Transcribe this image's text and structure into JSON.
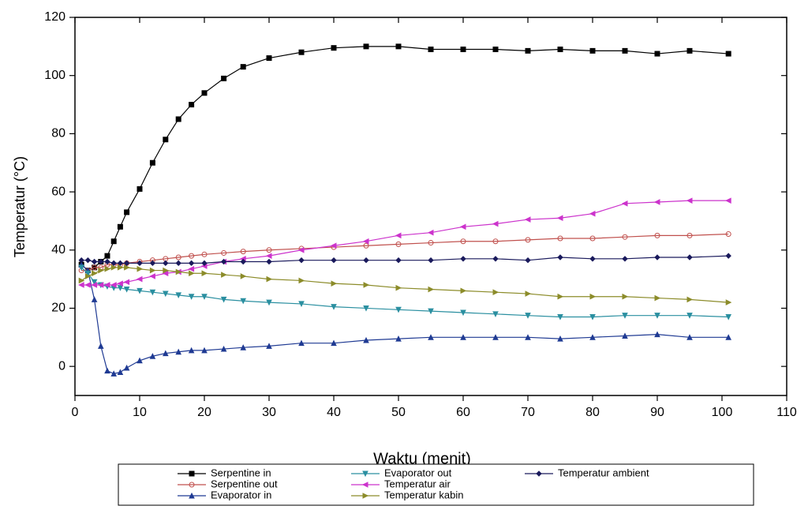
{
  "chart_data": {
    "type": "line",
    "xlabel": "Waktu (menit)",
    "ylabel": "Temperatur (°C)",
    "xlim": [
      0,
      110
    ],
    "ylim": [
      -10,
      120
    ],
    "xticks": [
      0,
      10,
      20,
      30,
      40,
      50,
      60,
      70,
      80,
      90,
      100,
      110
    ],
    "yticks": [
      0,
      20,
      40,
      60,
      80,
      100,
      120
    ],
    "x": [
      1,
      2,
      3,
      4,
      5,
      6,
      7,
      8,
      10,
      12,
      14,
      16,
      18,
      20,
      23,
      26,
      30,
      35,
      40,
      45,
      50,
      55,
      60,
      65,
      70,
      75,
      80,
      85,
      90,
      95,
      101
    ],
    "series": [
      {
        "name": "Serpentine in",
        "color": "#000000",
        "marker": "square",
        "values": [
          35,
          33,
          34,
          36,
          38,
          43,
          48,
          53,
          61,
          70,
          78,
          85,
          90,
          94,
          99,
          103,
          106,
          108,
          109.5,
          110,
          110,
          109,
          109,
          109,
          108.5,
          109,
          108.5,
          108.5,
          107.5,
          108.5,
          107.5
        ]
      },
      {
        "name": "Serpentine out",
        "color": "#c0504d",
        "marker": "circle",
        "values": [
          33,
          33,
          34,
          34,
          35,
          35,
          35,
          35.5,
          36,
          36.5,
          37,
          37.5,
          38,
          38.5,
          39,
          39.5,
          40,
          40.5,
          41,
          41.5,
          42,
          42.5,
          43,
          43,
          43.5,
          44,
          44,
          44.5,
          45,
          45,
          45.5
        ]
      },
      {
        "name": "Evaporator in",
        "color": "#1f3a93",
        "marker": "triangle-up",
        "values": [
          35,
          33,
          23,
          7,
          -1.5,
          -2.5,
          -2,
          -0.5,
          2,
          3.5,
          4.5,
          5,
          5.5,
          5.5,
          6,
          6.5,
          7,
          8,
          8,
          9,
          9.5,
          10,
          10,
          10,
          10,
          9.5,
          10,
          10.5,
          11,
          10,
          10
        ]
      },
      {
        "name": "Evaporator out",
        "color": "#2a8fa0",
        "marker": "triangle-down",
        "values": [
          34,
          32,
          29,
          28,
          27.5,
          27,
          27,
          26.5,
          26,
          25.5,
          25,
          24.5,
          24,
          24,
          23,
          22.5,
          22,
          21.5,
          20.5,
          20,
          19.5,
          19,
          18.5,
          18,
          17.5,
          17,
          17,
          17.5,
          17.5,
          17.5,
          17
        ]
      },
      {
        "name": "Temperatur air",
        "color": "#cc33cc",
        "marker": "triangle-left",
        "values": [
          28,
          28,
          28,
          28,
          28,
          28,
          28.5,
          29,
          30,
          31,
          32,
          32.5,
          33.5,
          34.5,
          36,
          37,
          38,
          40,
          41.5,
          43,
          45,
          46,
          48,
          49,
          50.5,
          51,
          52.5,
          56,
          56.5,
          57,
          57
        ]
      },
      {
        "name": "Temperatur kabin",
        "color": "#8c8c2a",
        "marker": "triangle-right",
        "values": [
          29.5,
          31,
          32,
          33,
          33.5,
          34,
          34,
          34,
          33.5,
          33,
          33,
          32.5,
          32,
          32,
          31.5,
          31,
          30,
          29.5,
          28.5,
          28,
          27,
          26.5,
          26,
          25.5,
          25,
          24,
          24,
          24,
          23.5,
          23,
          22
        ]
      },
      {
        "name": "Temperatur ambient",
        "color": "#1a1a5c",
        "marker": "diamond",
        "values": [
          36.5,
          36.5,
          36,
          36,
          36,
          35.5,
          35.5,
          35.5,
          35.5,
          35.5,
          35.5,
          35.5,
          35.5,
          35.5,
          36,
          36,
          36,
          36.5,
          36.5,
          36.5,
          36.5,
          36.5,
          37,
          37,
          36.5,
          37.5,
          37,
          37,
          37.5,
          37.5,
          38
        ]
      }
    ]
  }
}
